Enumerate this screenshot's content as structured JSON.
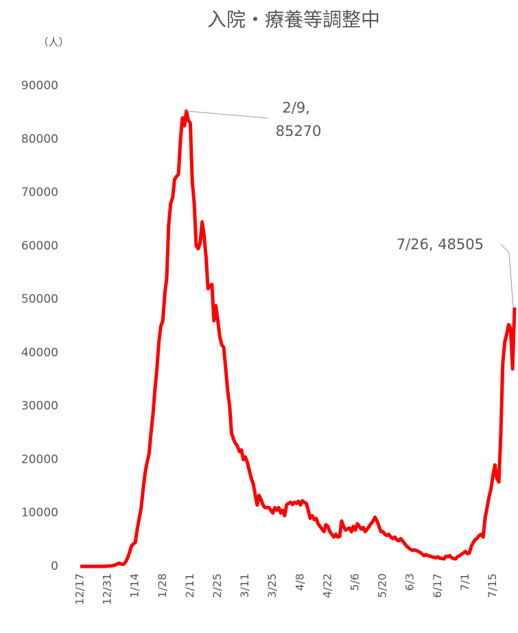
{
  "chart_data": {
    "type": "line",
    "title": "入院・療養等調整中",
    "y_label": "（人）",
    "color": "#ff0000",
    "ylim": [
      0,
      90000
    ],
    "yticks": [
      0,
      10000,
      20000,
      30000,
      40000,
      50000,
      60000,
      70000,
      80000,
      90000
    ],
    "categories": [
      "12/17",
      null,
      null,
      null,
      null,
      null,
      null,
      null,
      null,
      null,
      null,
      null,
      null,
      null,
      "12/31",
      null,
      null,
      null,
      null,
      null,
      null,
      null,
      null,
      null,
      null,
      null,
      null,
      null,
      "1/14",
      null,
      null,
      null,
      null,
      null,
      null,
      null,
      null,
      null,
      null,
      null,
      null,
      null,
      "1/28",
      null,
      null,
      null,
      null,
      null,
      null,
      null,
      null,
      null,
      null,
      null,
      null,
      null,
      "2/11",
      null,
      null,
      null,
      null,
      null,
      null,
      null,
      null,
      null,
      null,
      null,
      null,
      null,
      "2/25",
      null,
      null,
      null,
      null,
      null,
      null,
      null,
      null,
      null,
      null,
      null,
      null,
      null,
      "3/11",
      null,
      null,
      null,
      null,
      null,
      null,
      null,
      null,
      null,
      null,
      null,
      null,
      null,
      "3/25",
      null,
      null,
      null,
      null,
      null,
      null,
      null,
      null,
      null,
      null,
      null,
      null,
      null,
      "4/8",
      null,
      null,
      null,
      null,
      null,
      null,
      null,
      null,
      null,
      null,
      null,
      null,
      null,
      "4/22",
      null,
      null,
      null,
      null,
      null,
      null,
      null,
      null,
      null,
      null,
      null,
      null,
      null,
      "5/6",
      null,
      null,
      null,
      null,
      null,
      null,
      null,
      null,
      null,
      null,
      null,
      null,
      null,
      "5/20",
      null,
      null,
      null,
      null,
      null,
      null,
      null,
      null,
      null,
      null,
      null,
      null,
      null,
      "6/3",
      null,
      null,
      null,
      null,
      null,
      null,
      null,
      null,
      null,
      null,
      null,
      null,
      null,
      "6/17",
      null,
      null,
      null,
      null,
      null,
      null,
      null,
      null,
      null,
      null,
      null,
      null,
      null,
      "7/1",
      null,
      null,
      null,
      null,
      null,
      null,
      null,
      null,
      null,
      null,
      null,
      null,
      null,
      "7/15",
      null,
      null,
      null,
      null,
      null,
      null,
      null,
      null,
      null,
      null,
      null
    ],
    "values": [
      0,
      0,
      0,
      0,
      0,
      0,
      0,
      0,
      0,
      0,
      0,
      0,
      0,
      50,
      50,
      100,
      100,
      200,
      300,
      500,
      600,
      400,
      400,
      800,
      1500,
      2500,
      3800,
      4200,
      4500,
      7000,
      9000,
      11000,
      14500,
      17500,
      19500,
      21000,
      25000,
      28500,
      33000,
      37000,
      42000,
      45000,
      46000,
      51000,
      54000,
      64000,
      68000,
      69000,
      72500,
      73000,
      73500,
      80000,
      84000,
      82500,
      85270,
      83500,
      83000,
      72000,
      68000,
      60000,
      59500,
      60500,
      64500,
      62000,
      58000,
      52000,
      52500,
      52800,
      46000,
      48800,
      46000,
      43000,
      41500,
      41000,
      37000,
      33000,
      30000,
      25000,
      23800,
      23000,
      22500,
      21500,
      21800,
      20000,
      20500,
      19500,
      18000,
      16500,
      15500,
      13500,
      11500,
      13300,
      12500,
      11500,
      11000,
      11000,
      11000,
      10500,
      10000,
      11000,
      10500,
      11000,
      10000,
      10500,
      9500,
      11500,
      11800,
      12000,
      11600,
      12000,
      11800,
      12200,
      11500,
      12300,
      12000,
      11800,
      10500,
      9000,
      9500,
      8800,
      9000,
      8000,
      7500,
      7000,
      6500,
      7800,
      7500,
      6500,
      6000,
      5500,
      6000,
      5500,
      5600,
      8500,
      7500,
      6800,
      7000,
      7200,
      6500,
      7500,
      6800,
      8000,
      7500,
      7000,
      7300,
      6500,
      7000,
      7500,
      8000,
      8500,
      9200,
      8500,
      7500,
      6500,
      6500,
      6000,
      5800,
      6000,
      5500,
      5200,
      5500,
      5000,
      4800,
      5200,
      4800,
      4300,
      3800,
      3500,
      3200,
      3000,
      3100,
      3000,
      2800,
      2600,
      2300,
      2000,
      2200,
      2000,
      1900,
      1800,
      1700,
      1600,
      1800,
      1500,
      1500,
      1400,
      1900,
      1800,
      2000,
      1600,
      1500,
      1400,
      1800,
      2000,
      2300,
      2500,
      2800,
      2400,
      2500,
      3800,
      4500,
      5000,
      5300,
      5800,
      6000,
      5500,
      9000,
      11000,
      13000,
      14500,
      17000,
      19000,
      16500,
      15800,
      25000,
      38000,
      42000,
      43500,
      45300,
      44500,
      37000,
      48505
    ],
    "value_labels": {
      "54": "2/9, 85270",
      "221": "7/26, 48505"
    }
  }
}
